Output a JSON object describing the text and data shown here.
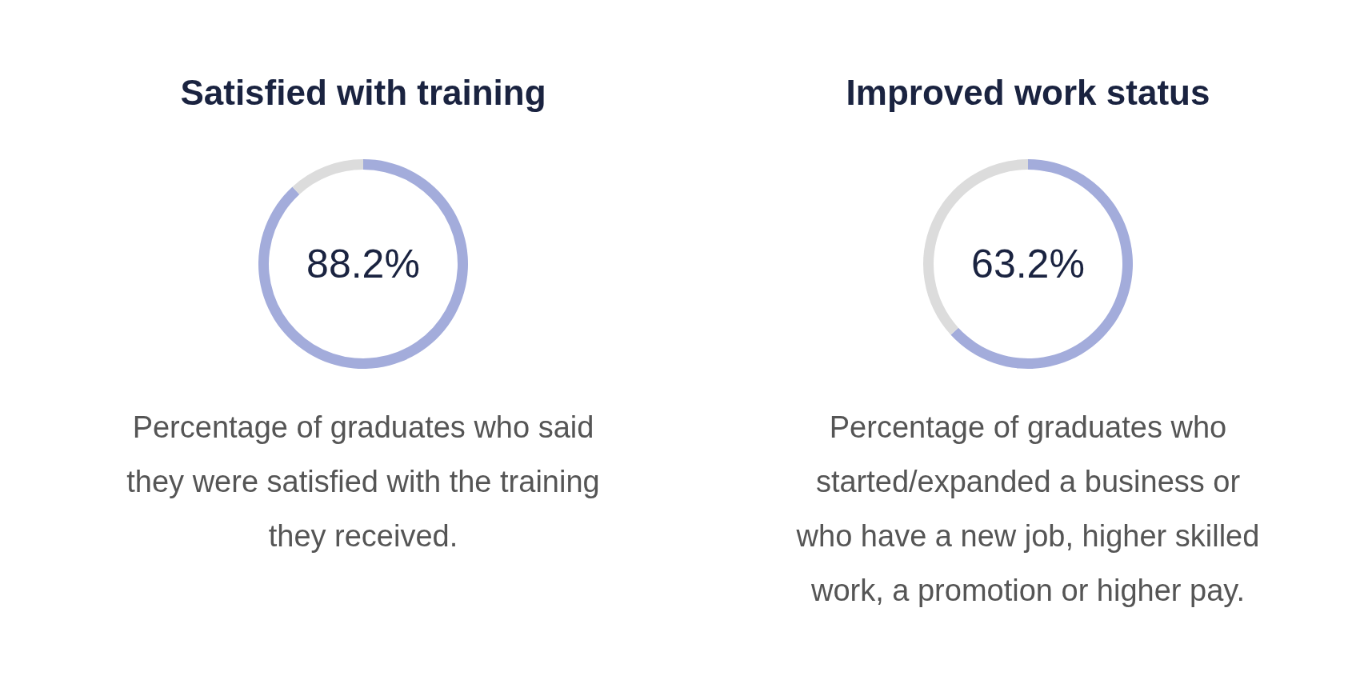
{
  "chart_data": [
    {
      "type": "donut",
      "title": "Satisfied with training",
      "categories": [
        null,
        null
      ],
      "values": [
        88.2,
        11.8
      ],
      "colors": [
        "#a3acdb",
        "#dcdcdc"
      ],
      "annotations": [
        "88.2%",
        "Percentage of graduates who said they were satisfied with the training they received."
      ]
    },
    {
      "type": "donut",
      "title": "Improved work status",
      "categories": [
        null,
        null
      ],
      "values": [
        63.2,
        36.8
      ],
      "colors": [
        "#a3acdb",
        "#dcdcdc"
      ],
      "annotations": [
        "63.2%",
        "Percentage of graduates who started/expanded a business or who have a new job, higher skilled work, a promotion or higher pay."
      ]
    }
  ]
}
